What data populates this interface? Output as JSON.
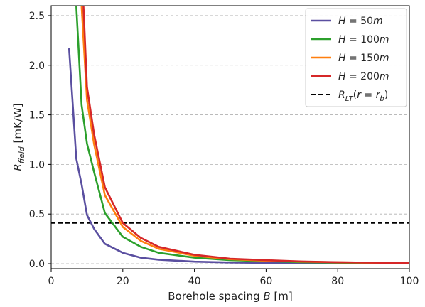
{
  "chart_data": {
    "type": "line",
    "xlabel": "Borehole spacing B [m]",
    "ylabel": "R_field [mK/W]",
    "xlim": [
      0,
      100
    ],
    "ylim": [
      -0.05,
      2.6
    ],
    "x_ticks": [
      "0",
      "20",
      "40",
      "60",
      "80",
      "100"
    ],
    "y_ticks": [
      "0.0",
      "0.5",
      "1.0",
      "1.5",
      "2.0",
      "2.5"
    ],
    "grid": "horizontal dashed",
    "legend_position": "top-right",
    "series": [
      {
        "name": "H = 50m",
        "color": "#5a4fa0",
        "x": [
          5,
          7,
          8.5,
          10,
          12,
          15,
          20,
          25,
          30,
          40,
          50,
          60,
          70,
          80,
          90,
          100
        ],
        "y": [
          2.17,
          1.06,
          0.8,
          0.49,
          0.35,
          0.2,
          0.11,
          0.06,
          0.04,
          0.02,
          0.012,
          0.008,
          0.005,
          0.004,
          0.003,
          0.002
        ]
      },
      {
        "name": "H = 100m",
        "color": "#2ca02c",
        "x": [
          7,
          8.5,
          10,
          12,
          15,
          20,
          25,
          30,
          40,
          50,
          60,
          70,
          80,
          90,
          100
        ],
        "y": [
          2.6,
          1.6,
          1.21,
          0.92,
          0.51,
          0.27,
          0.17,
          0.11,
          0.06,
          0.035,
          0.025,
          0.015,
          0.01,
          0.006,
          0.004
        ]
      },
      {
        "name": "H = 150m",
        "color": "#ff7f0e",
        "x": [
          8.5,
          10,
          12,
          15,
          20,
          25,
          30,
          40,
          50,
          60,
          70,
          80,
          90,
          100
        ],
        "y": [
          2.6,
          1.65,
          1.2,
          0.69,
          0.37,
          0.23,
          0.15,
          0.08,
          0.045,
          0.03,
          0.02,
          0.014,
          0.01,
          0.006
        ]
      },
      {
        "name": "H = 200m",
        "color": "#d62728",
        "x": [
          9,
          10,
          12,
          15,
          20,
          25,
          30,
          40,
          50,
          60,
          70,
          80,
          90,
          100
        ],
        "y": [
          2.6,
          1.78,
          1.3,
          0.77,
          0.41,
          0.26,
          0.17,
          0.09,
          0.05,
          0.035,
          0.022,
          0.015,
          0.01,
          0.006
        ]
      }
    ],
    "reference_line": {
      "name": "R_LT(r = r_b)",
      "y": 0.41,
      "color": "#000000",
      "style": "dashed"
    }
  }
}
